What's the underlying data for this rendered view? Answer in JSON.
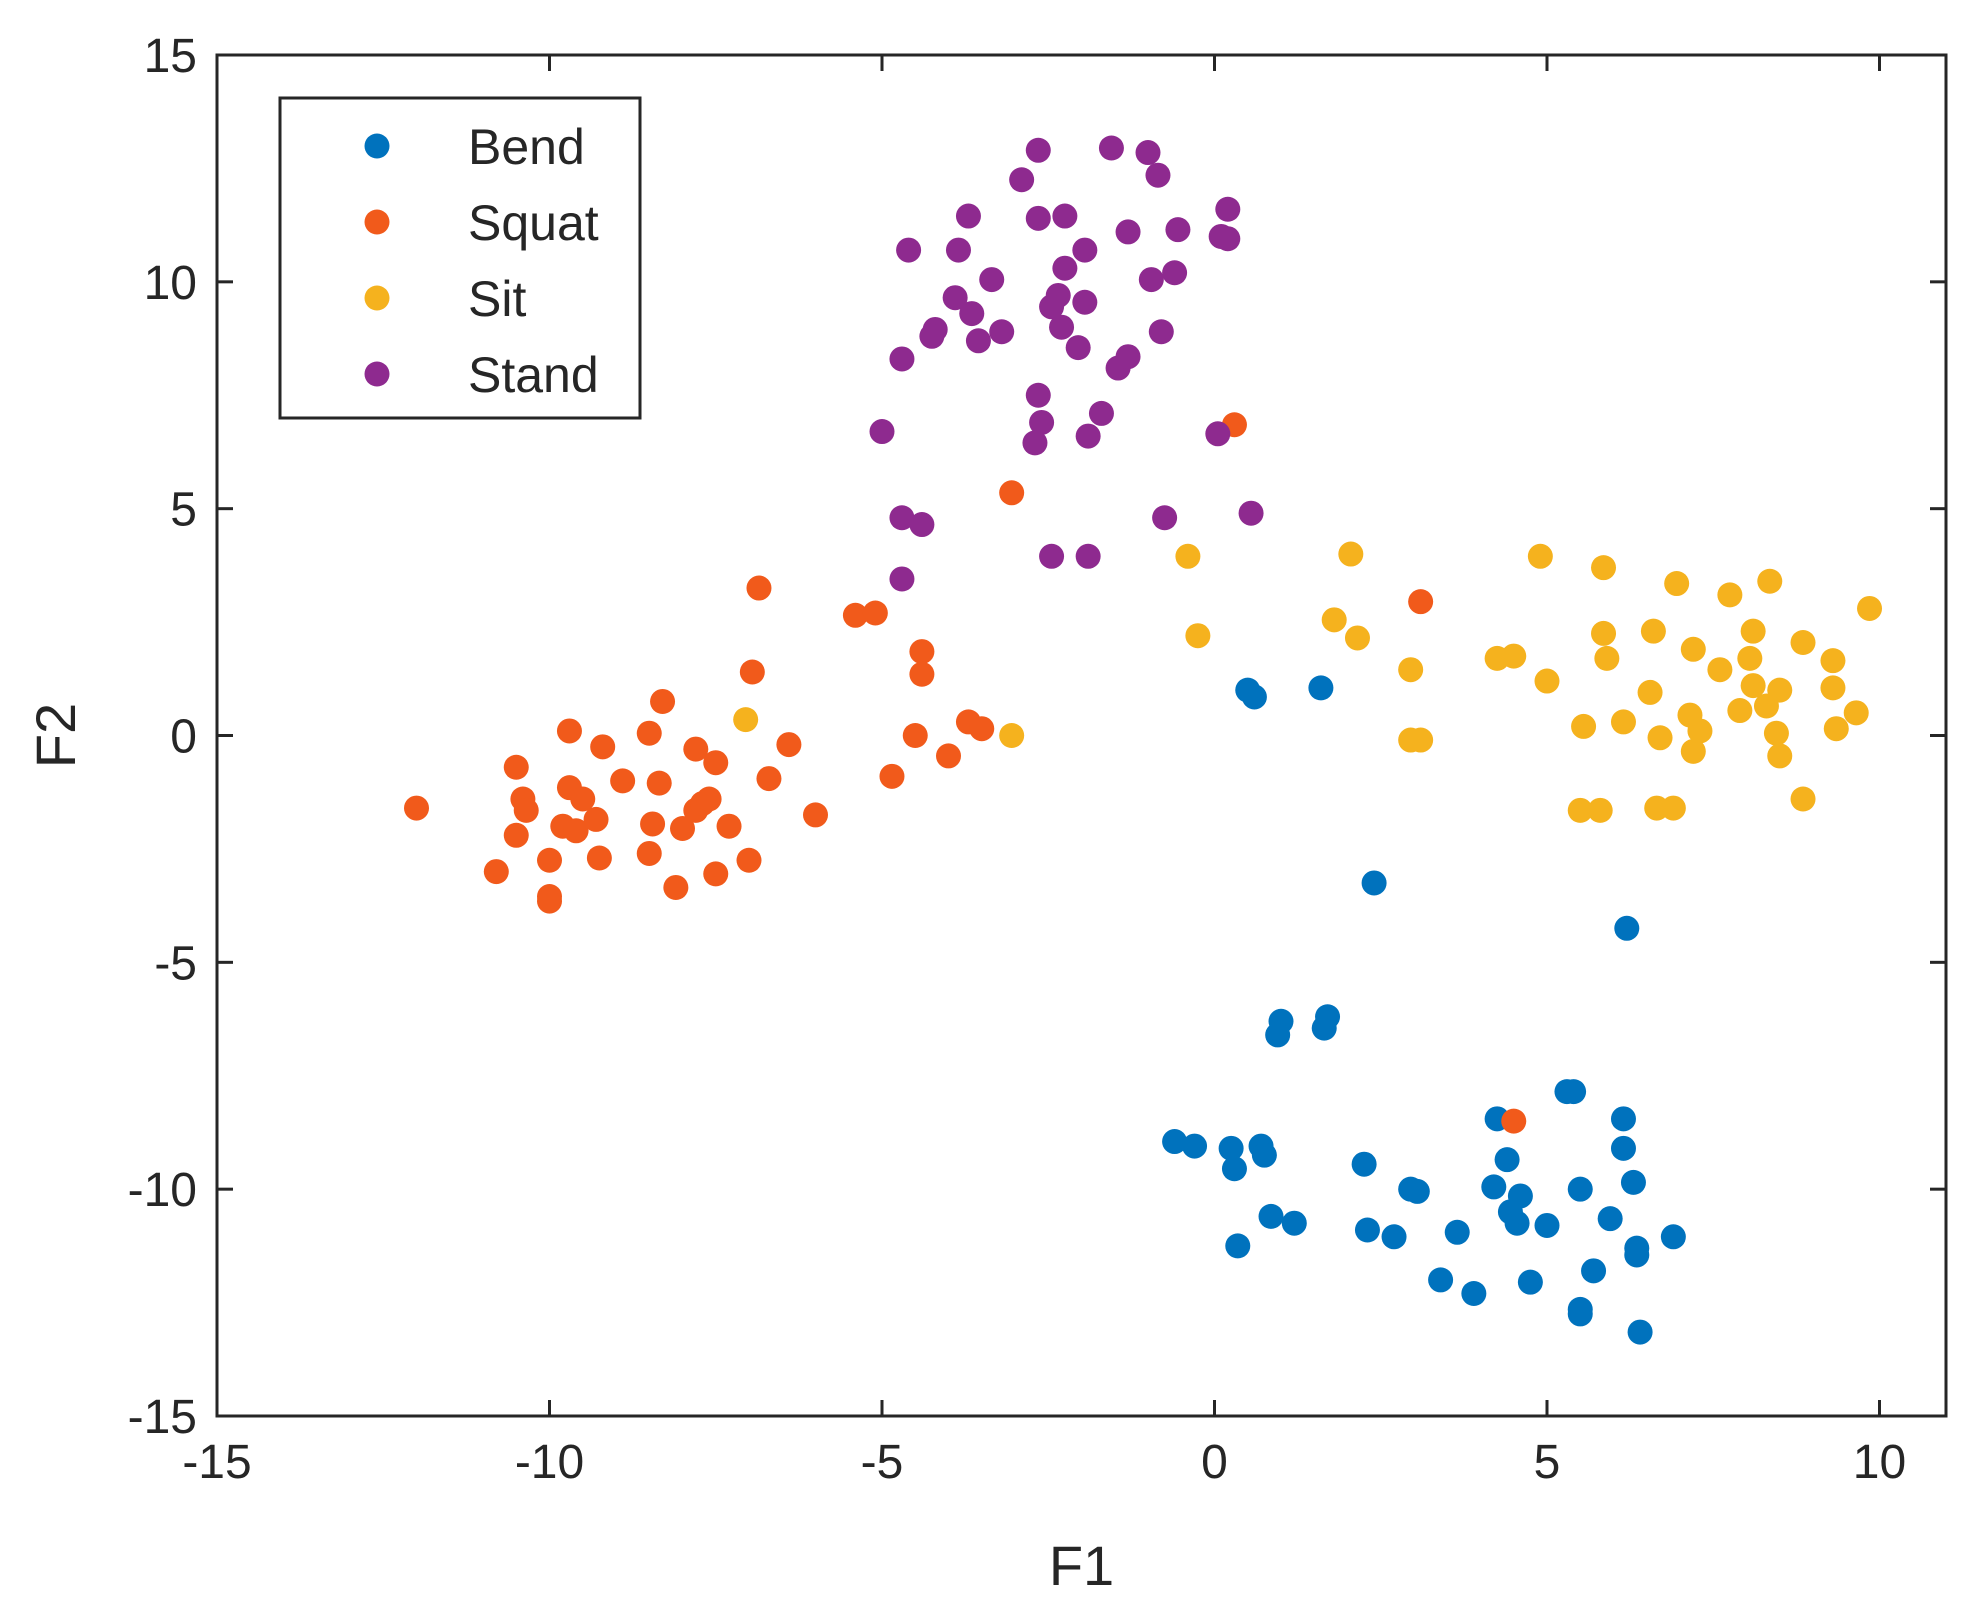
{
  "chart_data": {
    "type": "scatter",
    "title": "",
    "xlabel": "F1",
    "ylabel": "F2",
    "xlim": [
      -15,
      11
    ],
    "ylim": [
      -15,
      15
    ],
    "xticks": [
      -15,
      -10,
      -5,
      0,
      5,
      10
    ],
    "yticks": [
      -15,
      -10,
      -5,
      0,
      5,
      10,
      15
    ],
    "xtick_labels": [
      "-15",
      "-10",
      "-5",
      "0",
      "5",
      "10"
    ],
    "ytick_labels": [
      "-15",
      "-10",
      "-5",
      "0",
      "5",
      "10",
      "15"
    ],
    "grid": false,
    "legend_position": "top-left",
    "series": [
      {
        "name": "Bend",
        "color": "#0072BD",
        "points": [
          [
            0.5,
            1.0
          ],
          [
            0.6,
            0.85
          ],
          [
            1.6,
            1.05
          ],
          [
            2.4,
            -3.25
          ],
          [
            6.2,
            -4.25
          ],
          [
            1.0,
            -6.3
          ],
          [
            0.95,
            -6.6
          ],
          [
            1.7,
            -6.2
          ],
          [
            1.65,
            -6.45
          ],
          [
            5.3,
            -7.85
          ],
          [
            5.4,
            -7.85
          ],
          [
            4.25,
            -8.45
          ],
          [
            6.15,
            -8.45
          ],
          [
            -0.6,
            -8.95
          ],
          [
            -0.3,
            -9.05
          ],
          [
            0.25,
            -9.1
          ],
          [
            0.7,
            -9.05
          ],
          [
            0.75,
            -9.25
          ],
          [
            0.3,
            -9.55
          ],
          [
            2.25,
            -9.45
          ],
          [
            4.4,
            -9.35
          ],
          [
            6.15,
            -9.1
          ],
          [
            2.95,
            -10.0
          ],
          [
            3.05,
            -10.05
          ],
          [
            4.2,
            -9.95
          ],
          [
            5.5,
            -10.0
          ],
          [
            6.3,
            -9.85
          ],
          [
            4.6,
            -10.15
          ],
          [
            4.45,
            -10.5
          ],
          [
            4.55,
            -10.75
          ],
          [
            5.0,
            -10.8
          ],
          [
            5.95,
            -10.65
          ],
          [
            0.85,
            -10.6
          ],
          [
            1.2,
            -10.75
          ],
          [
            2.3,
            -10.9
          ],
          [
            2.7,
            -11.05
          ],
          [
            3.65,
            -10.95
          ],
          [
            6.9,
            -11.05
          ],
          [
            6.35,
            -11.3
          ],
          [
            6.35,
            -11.45
          ],
          [
            0.35,
            -11.25
          ],
          [
            3.4,
            -12.0
          ],
          [
            3.9,
            -12.3
          ],
          [
            4.75,
            -12.05
          ],
          [
            5.7,
            -11.8
          ],
          [
            5.5,
            -12.65
          ],
          [
            5.5,
            -12.75
          ],
          [
            6.4,
            -13.15
          ]
        ]
      },
      {
        "name": "Squat",
        "color": "#F15A1B",
        "points": [
          [
            -12.0,
            -1.6
          ],
          [
            -10.8,
            -3.0
          ],
          [
            -10.5,
            -0.7
          ],
          [
            -10.5,
            -2.2
          ],
          [
            -10.4,
            -1.4
          ],
          [
            -10.35,
            -1.65
          ],
          [
            -10.0,
            -2.75
          ],
          [
            -10.0,
            -3.55
          ],
          [
            -10.0,
            -3.65
          ],
          [
            -9.8,
            -2.0
          ],
          [
            -9.7,
            0.1
          ],
          [
            -9.7,
            -1.15
          ],
          [
            -9.6,
            -2.1
          ],
          [
            -9.5,
            -1.4
          ],
          [
            -9.3,
            -1.85
          ],
          [
            -9.25,
            -2.7
          ],
          [
            -9.2,
            -0.25
          ],
          [
            -8.9,
            -1.0
          ],
          [
            -8.5,
            0.05
          ],
          [
            -8.5,
            -2.6
          ],
          [
            -8.45,
            -1.95
          ],
          [
            -8.35,
            -1.05
          ],
          [
            -8.3,
            0.75
          ],
          [
            -8.1,
            -3.35
          ],
          [
            -8.0,
            -2.05
          ],
          [
            -7.8,
            -0.3
          ],
          [
            -7.8,
            -1.65
          ],
          [
            -7.7,
            -1.5
          ],
          [
            -7.6,
            -1.4
          ],
          [
            -7.5,
            -0.6
          ],
          [
            -7.5,
            -3.05
          ],
          [
            -7.3,
            -2.0
          ],
          [
            -7.0,
            -2.75
          ],
          [
            -6.95,
            1.4
          ],
          [
            -6.85,
            3.25
          ],
          [
            -6.7,
            -0.95
          ],
          [
            -6.4,
            -0.2
          ],
          [
            -6.0,
            -1.75
          ],
          [
            -5.4,
            2.65
          ],
          [
            -5.1,
            2.7
          ],
          [
            -4.85,
            -0.9
          ],
          [
            -4.5,
            0.0
          ],
          [
            -4.4,
            1.85
          ],
          [
            -4.4,
            1.35
          ],
          [
            -4.0,
            -0.45
          ],
          [
            -3.7,
            0.3
          ],
          [
            -3.5,
            0.15
          ],
          [
            -3.05,
            5.35
          ],
          [
            0.3,
            6.85
          ],
          [
            3.1,
            2.95
          ],
          [
            4.5,
            -8.5
          ]
        ]
      },
      {
        "name": "Sit",
        "color": "#F5B21E",
        "points": [
          [
            -7.05,
            0.35
          ],
          [
            -3.05,
            0.0
          ],
          [
            -0.4,
            3.95
          ],
          [
            -0.25,
            2.2
          ],
          [
            1.8,
            2.55
          ],
          [
            2.05,
            4.0
          ],
          [
            2.15,
            2.15
          ],
          [
            2.95,
            1.45
          ],
          [
            2.95,
            -0.1
          ],
          [
            3.1,
            -0.1
          ],
          [
            4.25,
            1.7
          ],
          [
            4.5,
            1.75
          ],
          [
            4.9,
            3.95
          ],
          [
            5.0,
            1.2
          ],
          [
            5.55,
            0.2
          ],
          [
            5.5,
            -1.65
          ],
          [
            5.8,
            -1.65
          ],
          [
            5.85,
            3.7
          ],
          [
            5.85,
            2.25
          ],
          [
            5.9,
            1.7
          ],
          [
            6.15,
            0.3
          ],
          [
            6.55,
            0.95
          ],
          [
            6.6,
            2.3
          ],
          [
            6.65,
            -1.6
          ],
          [
            6.7,
            -0.05
          ],
          [
            6.9,
            -1.6
          ],
          [
            6.95,
            3.35
          ],
          [
            7.15,
            0.45
          ],
          [
            7.2,
            -0.35
          ],
          [
            7.2,
            1.9
          ],
          [
            7.3,
            0.1
          ],
          [
            7.6,
            1.45
          ],
          [
            7.75,
            3.1
          ],
          [
            7.9,
            0.55
          ],
          [
            8.05,
            1.7
          ],
          [
            8.1,
            2.3
          ],
          [
            8.1,
            1.1
          ],
          [
            8.35,
            3.4
          ],
          [
            8.3,
            0.65
          ],
          [
            8.5,
            1.0
          ],
          [
            8.45,
            0.05
          ],
          [
            8.5,
            -0.45
          ],
          [
            8.85,
            2.05
          ],
          [
            8.85,
            -1.4
          ],
          [
            9.3,
            1.65
          ],
          [
            9.3,
            1.05
          ],
          [
            9.35,
            0.15
          ],
          [
            9.65,
            0.5
          ],
          [
            9.85,
            2.8
          ]
        ]
      },
      {
        "name": "Stand",
        "color": "#8E2A8F",
        "points": [
          [
            -2.65,
            12.9
          ],
          [
            -1.55,
            12.95
          ],
          [
            -1.0,
            12.85
          ],
          [
            -0.85,
            12.35
          ],
          [
            -2.9,
            12.25
          ],
          [
            -3.7,
            11.45
          ],
          [
            -2.65,
            11.4
          ],
          [
            -2.25,
            11.45
          ],
          [
            -1.3,
            11.1
          ],
          [
            -0.55,
            11.15
          ],
          [
            0.2,
            11.6
          ],
          [
            0.1,
            11.0
          ],
          [
            0.2,
            10.95
          ],
          [
            -4.6,
            10.7
          ],
          [
            -3.85,
            10.7
          ],
          [
            -1.95,
            10.7
          ],
          [
            -2.25,
            10.3
          ],
          [
            -3.35,
            10.05
          ],
          [
            -0.95,
            10.05
          ],
          [
            -0.6,
            10.2
          ],
          [
            -2.35,
            9.7
          ],
          [
            -2.45,
            9.45
          ],
          [
            -1.95,
            9.55
          ],
          [
            -3.9,
            9.65
          ],
          [
            -3.65,
            9.3
          ],
          [
            -4.2,
            8.95
          ],
          [
            -4.25,
            8.8
          ],
          [
            -3.55,
            8.7
          ],
          [
            -3.2,
            8.9
          ],
          [
            -2.3,
            9.0
          ],
          [
            -2.05,
            8.55
          ],
          [
            -1.45,
            8.1
          ],
          [
            -1.3,
            8.35
          ],
          [
            -0.8,
            8.9
          ],
          [
            -4.7,
            8.3
          ],
          [
            -2.65,
            7.5
          ],
          [
            -1.7,
            7.1
          ],
          [
            -2.6,
            6.9
          ],
          [
            -2.7,
            6.45
          ],
          [
            -1.9,
            6.6
          ],
          [
            -5.0,
            6.7
          ],
          [
            0.05,
            6.65
          ],
          [
            -4.7,
            4.8
          ],
          [
            -4.4,
            4.65
          ],
          [
            -0.75,
            4.8
          ],
          [
            0.55,
            4.9
          ],
          [
            -2.45,
            3.95
          ],
          [
            -1.9,
            3.95
          ],
          [
            -4.7,
            3.45
          ]
        ]
      }
    ]
  }
}
